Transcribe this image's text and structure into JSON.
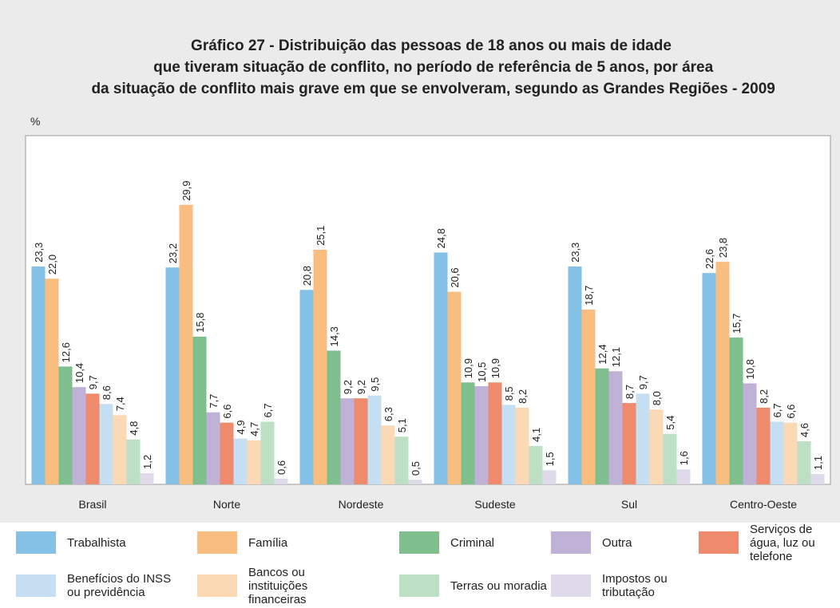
{
  "chart_data": {
    "type": "bar",
    "title": "Gráfico 27 - Distribuição das pessoas de 18 anos ou mais de idade que tiveram situação de conflito, no período de referência de 5 anos, por área da situação de conflito mais grave em que se envolveram, segundo as Grandes Regiões - 2009",
    "ylabel": "%",
    "categories": [
      "Brasil",
      "Norte",
      "Nordeste",
      "Sudeste",
      "Sul",
      "Centro-Oeste"
    ],
    "ylim": [
      0,
      37.3
    ],
    "series": [
      {
        "name": "Trabalhista",
        "color": "#85c1e5",
        "values": [
          23.3,
          23.2,
          20.8,
          24.8,
          23.3,
          22.6
        ],
        "value_labels": [
          "23,3",
          "23,2",
          "20,8",
          "24,8",
          "23,3",
          "22,6"
        ]
      },
      {
        "name": "Família",
        "color": "#f9bd7f",
        "values": [
          22.0,
          29.9,
          25.1,
          20.6,
          18.7,
          23.8
        ],
        "value_labels": [
          "22,0",
          "29,9",
          "25,1",
          "20,6",
          "18,7",
          "23,8"
        ]
      },
      {
        "name": "Criminal",
        "color": "#7fbf8e",
        "values": [
          12.6,
          15.8,
          14.3,
          10.9,
          12.4,
          15.7
        ],
        "value_labels": [
          "12,6",
          "15,8",
          "14,3",
          "10,9",
          "12,4",
          "15,7"
        ]
      },
      {
        "name": "Outra",
        "color": "#c0b2d6",
        "values": [
          10.4,
          7.7,
          9.2,
          10.5,
          12.1,
          10.8
        ],
        "value_labels": [
          "10,4",
          "7,7",
          "9,2",
          "10,5",
          "12,1",
          "10,8"
        ]
      },
      {
        "name": "Serviços de água, luz ou telefone",
        "color": "#ef8b6c",
        "values": [
          9.7,
          6.6,
          9.2,
          10.9,
          8.7,
          8.2
        ],
        "value_labels": [
          "9,7",
          "6,6",
          "9,2",
          "10,9",
          "8,7",
          "8,2"
        ]
      },
      {
        "name": "Benefícios do INSS ou previdência",
        "color": "#c6def2",
        "values": [
          8.6,
          4.9,
          9.5,
          8.5,
          9.7,
          6.7
        ],
        "value_labels": [
          "8,6",
          "4,9",
          "9,5",
          "8,5",
          "9,7",
          "6,7"
        ]
      },
      {
        "name": "Bancos ou instituições financeiras",
        "color": "#fcd9b5",
        "values": [
          7.4,
          4.7,
          6.3,
          8.2,
          8.0,
          6.6
        ],
        "value_labels": [
          "7,4",
          "4,7",
          "6,3",
          "8,2",
          "8,0",
          "6,6"
        ]
      },
      {
        "name": "Terras ou moradia",
        "color": "#bde0c4",
        "values": [
          4.8,
          6.7,
          5.1,
          4.1,
          5.4,
          4.6
        ],
        "value_labels": [
          "4,8",
          "6,7",
          "5,1",
          "4,1",
          "5,4",
          "4,6"
        ]
      },
      {
        "name": "Impostos ou tributação",
        "color": "#dedaea",
        "values": [
          1.2,
          0.6,
          0.5,
          1.5,
          1.6,
          1.1
        ],
        "value_labels": [
          "1,2",
          "0,6",
          "0,5",
          "1,5",
          "1,6",
          "1,1"
        ]
      }
    ]
  }
}
